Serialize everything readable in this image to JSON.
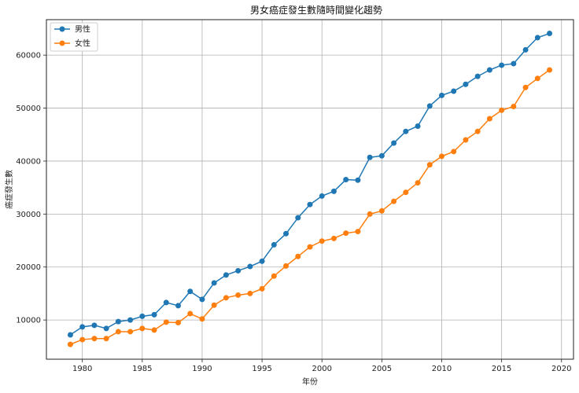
{
  "chart_data": {
    "type": "line",
    "title": "男女癌症發生數隨時間變化趨勢",
    "xlabel": "年份",
    "ylabel": "癌症發生數",
    "xlim": [
      1977.0,
      2021.0
    ],
    "ylim": [
      2600,
      66700
    ],
    "x_ticks": [
      1980,
      1985,
      1990,
      1995,
      2000,
      2005,
      2010,
      2015,
      2020
    ],
    "y_ticks": [
      10000,
      20000,
      30000,
      40000,
      50000,
      60000
    ],
    "grid": true,
    "legend_position": "top-left",
    "x": [
      1979,
      1980,
      1981,
      1982,
      1983,
      1984,
      1985,
      1986,
      1987,
      1988,
      1989,
      1990,
      1991,
      1992,
      1993,
      1994,
      1995,
      1996,
      1997,
      1998,
      1999,
      2000,
      2001,
      2002,
      2003,
      2004,
      2005,
      2006,
      2007,
      2008,
      2009,
      2010,
      2011,
      2012,
      2013,
      2014,
      2015,
      2016,
      2017,
      2018,
      2019
    ],
    "series": [
      {
        "name": "男性",
        "color": "#1f77b4",
        "values": [
          7200,
          8700,
          9000,
          8400,
          9700,
          10000,
          10700,
          11000,
          13300,
          12700,
          15400,
          13900,
          17000,
          18500,
          19300,
          20100,
          21100,
          24200,
          26300,
          29300,
          31800,
          33400,
          34300,
          36500,
          36400,
          40700,
          41000,
          43400,
          45600,
          46600,
          50400,
          52400,
          53200,
          54500,
          56000,
          57200,
          58100,
          58400,
          61000,
          63300,
          64100
        ]
      },
      {
        "name": "女性",
        "color": "#ff7f0e",
        "values": [
          5400,
          6300,
          6500,
          6500,
          7800,
          7800,
          8400,
          8100,
          9600,
          9500,
          11200,
          10200,
          12800,
          14200,
          14700,
          15000,
          15900,
          18300,
          20200,
          22000,
          23800,
          24900,
          25400,
          26400,
          26700,
          30000,
          30600,
          32400,
          34100,
          35900,
          39300,
          40900,
          41800,
          44000,
          45600,
          48000,
          49600,
          50300,
          53900,
          55600,
          57200
        ]
      }
    ]
  }
}
